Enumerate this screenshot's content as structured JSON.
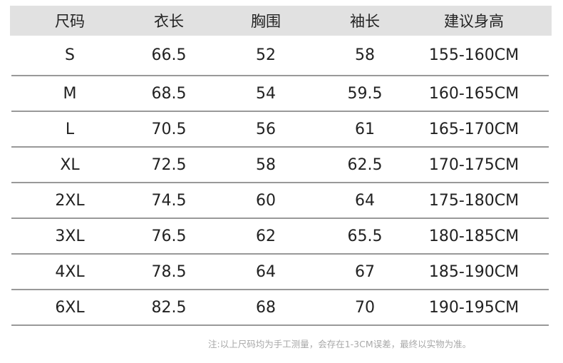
{
  "table": {
    "headers": [
      "尺码",
      "衣长",
      "胸围",
      "袖长",
      "建议身高"
    ],
    "rows": [
      [
        "S",
        "66.5",
        "52",
        "58",
        "155-160CM"
      ],
      [
        "M",
        "68.5",
        "54",
        "59.5",
        "160-165CM"
      ],
      [
        "L",
        "70.5",
        "56",
        "61",
        "165-170CM"
      ],
      [
        "XL",
        "72.5",
        "58",
        "62.5",
        "170-175CM"
      ],
      [
        "2XL",
        "74.5",
        "60",
        "64",
        "175-180CM"
      ],
      [
        "3XL",
        "76.5",
        "62",
        "65.5",
        "180-185CM"
      ],
      [
        "4XL",
        "78.5",
        "64",
        "67",
        "185-190CM"
      ],
      [
        "6XL",
        "82.5",
        "68",
        "70",
        "190-195CM"
      ]
    ]
  },
  "note": "注:以上尺码均为手工测量，会存在1-3CM误差，最终以实物为准。",
  "colors": {
    "header_bg": "#e1e1e1",
    "divider": "#999999",
    "note_text": "#a8a8a8"
  }
}
